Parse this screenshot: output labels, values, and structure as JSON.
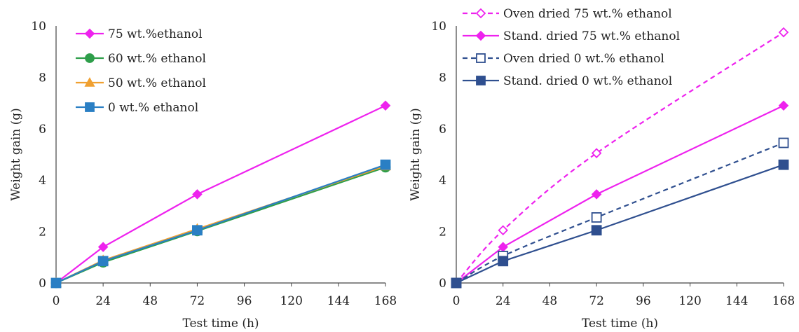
{
  "chart_data": [
    {
      "type": "line",
      "title": "",
      "xlabel": "Test time (h)",
      "ylabel": "Weight gain (g)",
      "xlim": [
        0,
        168
      ],
      "ylim": [
        0,
        10
      ],
      "xticks": [
        0,
        24,
        48,
        72,
        96,
        120,
        144,
        168
      ],
      "yticks": [
        0,
        2,
        4,
        6,
        8,
        10
      ],
      "grid": false,
      "legend_position": "top-left",
      "series": [
        {
          "name": "75 wt.%ethanol",
          "color": "#ee22ee",
          "marker": "diamond",
          "dash": "solid",
          "fill": true,
          "x": [
            0,
            24,
            72,
            168
          ],
          "y": [
            0,
            1.4,
            3.45,
            6.9
          ]
        },
        {
          "name": "60 wt.% ethanol",
          "color": "#2e9e4a",
          "marker": "circle",
          "dash": "solid",
          "fill": true,
          "x": [
            0,
            24,
            72,
            168
          ],
          "y": [
            0,
            0.8,
            2.02,
            4.5
          ]
        },
        {
          "name": "50 wt.% ethanol",
          "color": "#f0a030",
          "marker": "triangle",
          "dash": "solid",
          "fill": true,
          "x": [
            0,
            24,
            72,
            168
          ],
          "y": [
            0,
            0.88,
            2.1,
            4.55
          ]
        },
        {
          "name": "0 wt.% ethanol",
          "color": "#2a7fc4",
          "marker": "square",
          "dash": "solid",
          "fill": true,
          "x": [
            0,
            24,
            72,
            168
          ],
          "y": [
            0,
            0.85,
            2.05,
            4.6
          ]
        }
      ]
    },
    {
      "type": "line",
      "title": "",
      "xlabel": "Test time (h)",
      "ylabel": "Weight gain (g)",
      "xlim": [
        0,
        168
      ],
      "ylim": [
        0,
        10
      ],
      "xticks": [
        0,
        24,
        48,
        72,
        96,
        120,
        144,
        168
      ],
      "yticks": [
        0,
        2,
        4,
        6,
        8,
        10
      ],
      "grid": false,
      "legend_position": "top-left",
      "series": [
        {
          "name": "Oven dried 75 wt.% ethanol",
          "color": "#ee22ee",
          "marker": "diamond",
          "dash": "dashed",
          "fill": false,
          "x": [
            0,
            24,
            72,
            168
          ],
          "y": [
            0,
            2.05,
            5.05,
            9.75
          ]
        },
        {
          "name": "Stand. dried 75 wt.% ethanol",
          "color": "#ee22ee",
          "marker": "diamond",
          "dash": "solid",
          "fill": true,
          "x": [
            0,
            24,
            72,
            168
          ],
          "y": [
            0,
            1.4,
            3.45,
            6.9
          ]
        },
        {
          "name": "Oven dried 0 wt.% ethanol",
          "color": "#2f4f8f",
          "marker": "square",
          "dash": "dashed",
          "fill": false,
          "x": [
            0,
            24,
            72,
            168
          ],
          "y": [
            0,
            1.05,
            2.55,
            5.45
          ]
        },
        {
          "name": "Stand. dried 0 wt.% ethanol",
          "color": "#2f4f8f",
          "marker": "square",
          "dash": "solid",
          "fill": true,
          "x": [
            0,
            24,
            72,
            168
          ],
          "y": [
            0,
            0.85,
            2.05,
            4.6
          ]
        }
      ]
    }
  ]
}
